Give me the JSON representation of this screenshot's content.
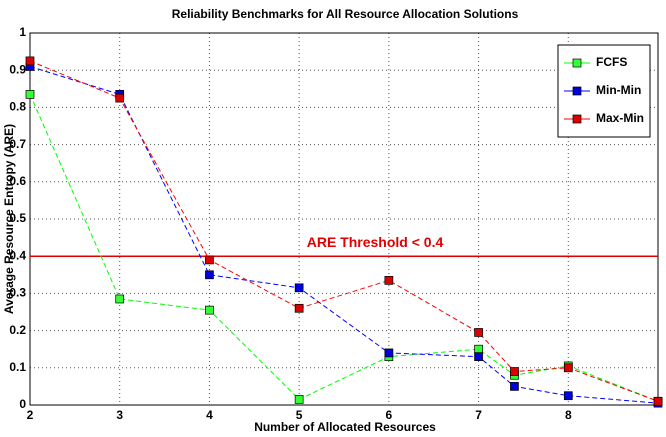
{
  "chart_data": {
    "type": "line",
    "title": "Reliability Benchmarks for All Resource Allocation Solutions",
    "x_label": "Number of Allocated Resources",
    "y_label": "Average Resource Entropy (ARE)",
    "x": [
      2,
      3,
      4,
      5,
      6,
      7,
      7.4,
      8,
      9
    ],
    "series": [
      {
        "name": "FCFS",
        "color": "#00ff00",
        "marker_color": "#33ff33",
        "values": [
          0.835,
          0.285,
          0.255,
          0.015,
          0.13,
          0.15,
          0.08,
          0.105,
          0.01
        ]
      },
      {
        "name": "Min-Min",
        "color": "#0000ff",
        "marker_color": "#0000dd",
        "values": [
          0.91,
          0.835,
          0.35,
          0.315,
          0.14,
          0.13,
          0.05,
          0.025,
          0.005
        ]
      },
      {
        "name": "Max-Min",
        "color": "#ff0000",
        "marker_color": "#dd0000",
        "values": [
          0.925,
          0.825,
          0.39,
          0.26,
          0.335,
          0.195,
          0.09,
          0.1,
          0.01
        ]
      }
    ],
    "threshold": {
      "value": 0.4,
      "label": "ARE Threshold < 0.4",
      "color": "#e00000"
    },
    "xlim": [
      2,
      9
    ],
    "xticks": [
      2,
      3,
      4,
      5,
      6,
      7,
      8
    ],
    "ylim": [
      0,
      1
    ],
    "yticks": [
      0,
      0.1,
      0.2,
      0.3,
      0.4,
      0.5,
      0.6,
      0.7,
      0.8,
      0.9,
      1
    ],
    "grid": true,
    "legend": "upper right"
  }
}
